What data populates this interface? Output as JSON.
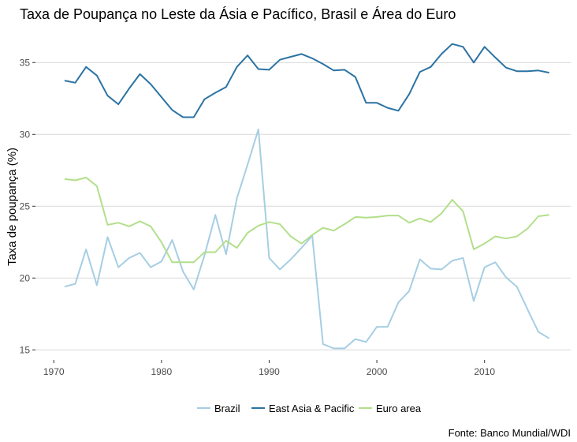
{
  "chart_data": {
    "type": "line",
    "title": "Taxa de Poupança no Leste da Ásia e Pacífico, Brasil e Área do Euro",
    "xlabel": "",
    "ylabel": "Taxa de poupança (%)",
    "caption": "Fonte: Banco Mundial/WDI",
    "xlim": [
      1968.3,
      2018
    ],
    "ylim": [
      14.3,
      37.6
    ],
    "xticks": [
      1970,
      1980,
      1990,
      2000,
      2010
    ],
    "xtick_labels": [
      "1970",
      "1980",
      "1990",
      "2000",
      "2010"
    ],
    "yticks": [
      15,
      20,
      25,
      30,
      35
    ],
    "ytick_labels": [
      "15",
      "20",
      "25",
      "30",
      "35"
    ],
    "grid": "horizontal",
    "legend_position": "bottom",
    "x": [
      1971,
      1972,
      1973,
      1974,
      1975,
      1976,
      1977,
      1978,
      1979,
      1980,
      1981,
      1982,
      1983,
      1984,
      1985,
      1986,
      1987,
      1988,
      1989,
      1990,
      1991,
      1992,
      1993,
      1994,
      1995,
      1996,
      1997,
      1998,
      1999,
      2000,
      2001,
      2002,
      2003,
      2004,
      2005,
      2006,
      2007,
      2008,
      2009,
      2010,
      2011,
      2012,
      2013,
      2014,
      2015,
      2016
    ],
    "series": [
      {
        "name": "Brazil",
        "color": "#a6cee3",
        "values": [
          19.4,
          19.6,
          22.0,
          19.5,
          22.85,
          20.75,
          21.4,
          21.75,
          20.75,
          21.15,
          22.65,
          20.45,
          19.2,
          21.6,
          24.4,
          21.65,
          25.55,
          27.9,
          30.35,
          21.4,
          20.6,
          21.3,
          22.1,
          22.95,
          15.4,
          15.1,
          15.1,
          15.75,
          15.55,
          16.6,
          16.6,
          18.3,
          19.1,
          21.3,
          20.65,
          20.6,
          21.2,
          21.4,
          18.4,
          20.75,
          21.1,
          20.05,
          19.4,
          17.8,
          16.25,
          15.8
        ]
      },
      {
        "name": "East Asia & Pacific",
        "color": "#2b73a3",
        "values": [
          33.75,
          33.6,
          34.7,
          34.1,
          32.7,
          32.1,
          33.2,
          34.2,
          33.5,
          32.6,
          31.7,
          31.2,
          31.2,
          32.45,
          32.9,
          33.3,
          34.7,
          35.5,
          34.55,
          34.5,
          35.2,
          35.4,
          35.6,
          35.3,
          34.9,
          34.45,
          34.5,
          34.0,
          32.2,
          32.2,
          31.85,
          31.65,
          32.8,
          34.35,
          34.7,
          35.6,
          36.3,
          36.1,
          35.0,
          36.1,
          35.35,
          34.65,
          34.4,
          34.4,
          34.45,
          34.3
        ]
      },
      {
        "name": "Euro area",
        "color": "#b2df8a",
        "values": [
          26.9,
          26.8,
          27.0,
          26.4,
          23.7,
          23.85,
          23.6,
          23.95,
          23.6,
          22.5,
          21.1,
          21.1,
          21.1,
          21.8,
          21.8,
          22.6,
          22.1,
          23.15,
          23.65,
          23.9,
          23.75,
          22.9,
          22.4,
          23.0,
          23.5,
          23.3,
          23.75,
          24.25,
          24.2,
          24.25,
          24.35,
          24.35,
          23.85,
          24.15,
          23.9,
          24.5,
          25.45,
          24.65,
          22.0,
          22.4,
          22.9,
          22.75,
          22.9,
          23.45,
          24.3,
          24.4
        ]
      }
    ]
  }
}
